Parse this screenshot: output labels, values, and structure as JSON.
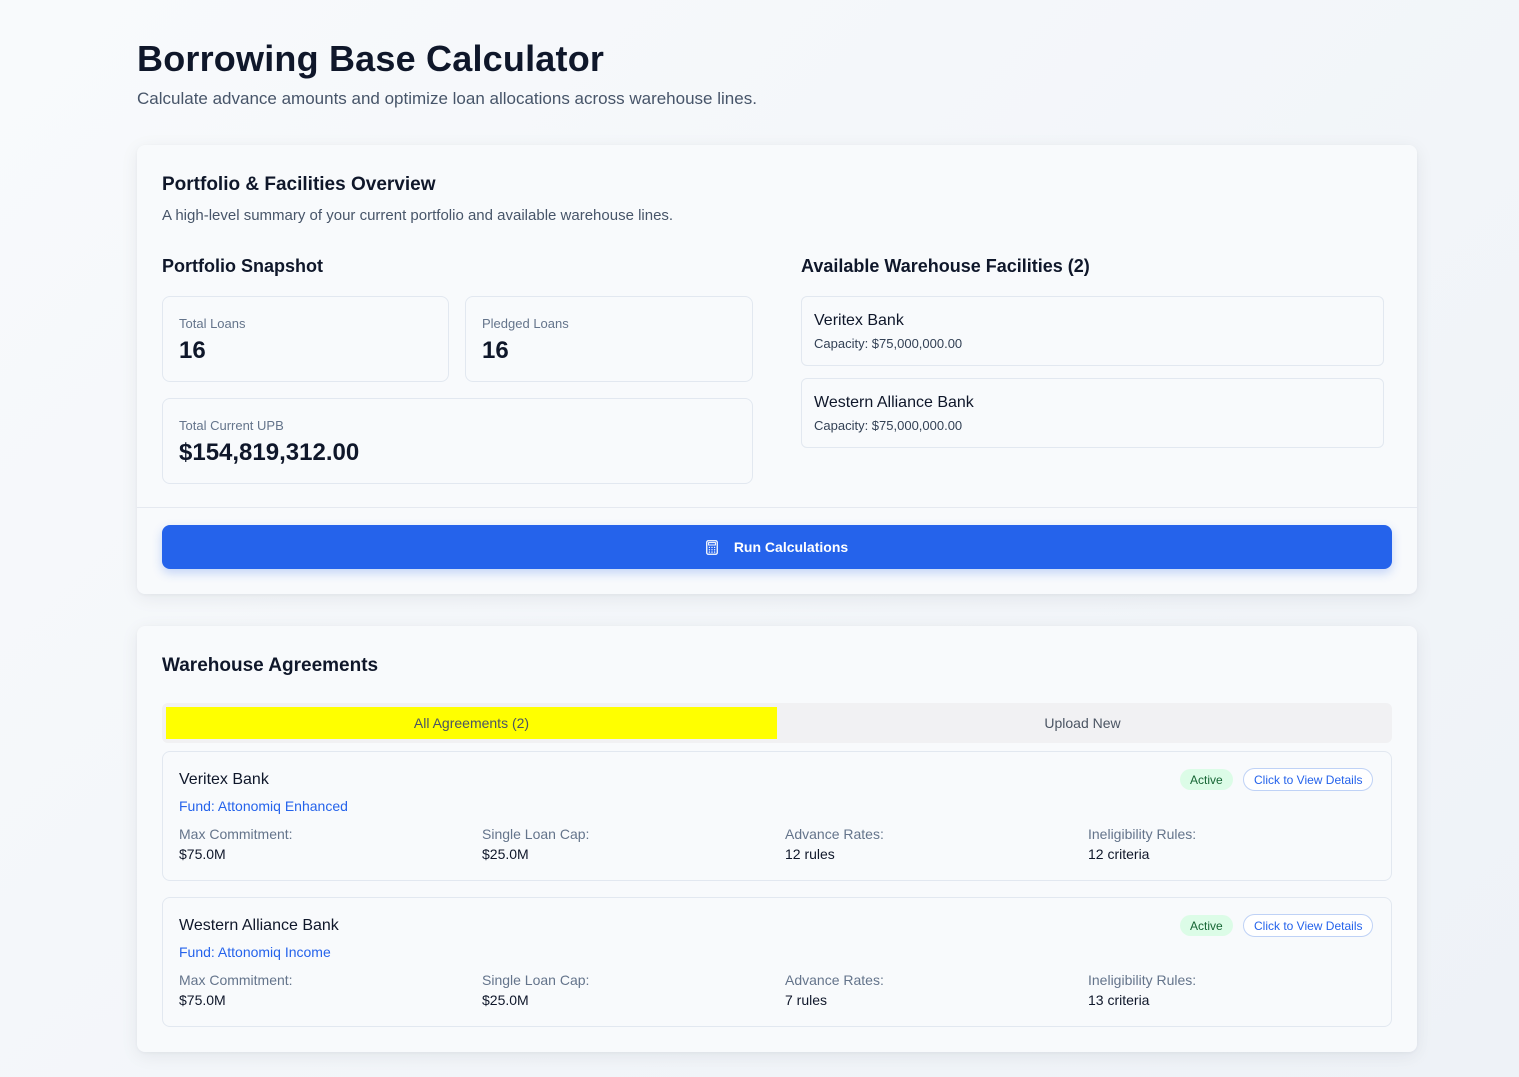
{
  "header": {
    "title": "Borrowing Base Calculator",
    "subtitle": "Calculate advance amounts and optimize loan allocations across warehouse lines."
  },
  "overview": {
    "title": "Portfolio & Facilities Overview",
    "description": "A high-level summary of your current portfolio and available warehouse lines.",
    "snapshot": {
      "heading": "Portfolio Snapshot",
      "total_loans_label": "Total Loans",
      "total_loans_value": "16",
      "pledged_loans_label": "Pledged Loans",
      "pledged_loans_value": "16",
      "total_upb_label": "Total Current UPB",
      "total_upb_value": "$154,819,312.00"
    },
    "facilities": {
      "heading": "Available Warehouse Facilities (2)",
      "items": [
        {
          "name": "Veritex Bank",
          "capacity": "Capacity: $75,000,000.00"
        },
        {
          "name": "Western Alliance Bank",
          "capacity": "Capacity: $75,000,000.00"
        }
      ]
    },
    "run_button": {
      "label": "Run Calculations",
      "icon": "calculator-icon"
    }
  },
  "agreements": {
    "title": "Warehouse Agreements",
    "tabs": [
      {
        "label": "All Agreements (2)",
        "active": true
      },
      {
        "label": "Upload New",
        "active": false
      }
    ],
    "items": [
      {
        "bank": "Veritex Bank",
        "fund": "Fund: Attonomiq Enhanced",
        "status": "Active",
        "details_label": "Click to View Details",
        "max_commitment_label": "Max Commitment:",
        "max_commitment": "$75.0M",
        "single_loan_cap_label": "Single Loan Cap:",
        "single_loan_cap": "$25.0M",
        "advance_rates_label": "Advance Rates:",
        "advance_rates": "12 rules",
        "ineligibility_label": "Ineligibility Rules:",
        "ineligibility": "12 criteria"
      },
      {
        "bank": "Western Alliance Bank",
        "fund": "Fund: Attonomiq Income",
        "status": "Active",
        "details_label": "Click to View Details",
        "max_commitment_label": "Max Commitment:",
        "max_commitment": "$75.0M",
        "single_loan_cap_label": "Single Loan Cap:",
        "single_loan_cap": "$25.0M",
        "advance_rates_label": "Advance Rates:",
        "advance_rates": "7 rules",
        "ineligibility_label": "Ineligibility Rules:",
        "ineligibility": "13 criteria"
      }
    ]
  },
  "colors": {
    "primary": "#2563eb",
    "active_tab_highlight": "#ffff00",
    "badge_bg": "#dcfce7",
    "badge_text": "#166534"
  }
}
